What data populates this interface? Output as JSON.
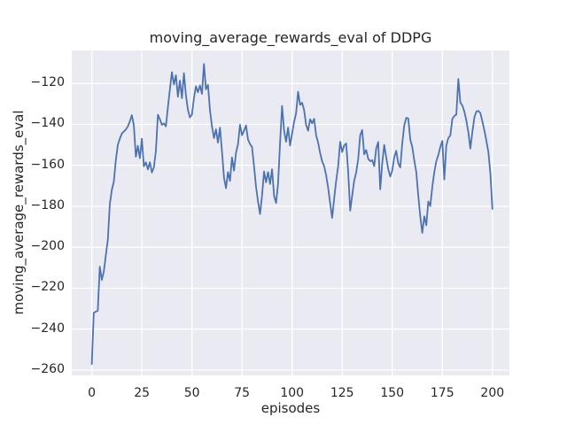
{
  "page": {
    "background": "#ffffff"
  },
  "chart_data": {
    "type": "line",
    "title": "moving_average_rewards_eval of DDPG",
    "xlabel": "episodes",
    "ylabel": "moving_average_rewards_eval",
    "x_ticks": [
      0,
      25,
      50,
      75,
      100,
      125,
      150,
      175,
      200
    ],
    "y_ticks": [
      -120,
      -140,
      -160,
      -180,
      -200,
      -220,
      -240,
      -260
    ],
    "xlim": [
      -10,
      208.5
    ],
    "ylim": [
      -262.6,
      -103.9
    ],
    "grid": true,
    "legend_position": "none",
    "style": {
      "axes_bg": "#eaeaf2",
      "grid_color": "#ffffff",
      "line_color": "#4c72b0",
      "text_color": "#262626"
    },
    "series": [
      {
        "name": "moving_average_rewards_eval",
        "x_start": 0,
        "x_step": 1,
        "values": [
          -257,
          -232,
          -231.5,
          -231,
          -209.5,
          -216,
          -212,
          -204,
          -196.5,
          -179,
          -172,
          -168,
          -157.5,
          -150,
          -147,
          -144.5,
          -143.5,
          -142.5,
          -141,
          -138.5,
          -135.5,
          -140.5,
          -155.8,
          -150.5,
          -156.5,
          -147,
          -160.5,
          -158.5,
          -162,
          -158.5,
          -163.5,
          -161,
          -153,
          -135.3,
          -137.5,
          -140.2,
          -139.5,
          -141,
          -131.6,
          -122.9,
          -114.5,
          -120.5,
          -116,
          -126.5,
          -118.6,
          -127.2,
          -115,
          -125.8,
          -133,
          -136.6,
          -135.2,
          -127.2,
          -121.4,
          -124.3,
          -121,
          -125.1,
          -110.5,
          -122.9,
          -120.7,
          -133,
          -141,
          -146.7,
          -142.4,
          -148.9,
          -141.6,
          -153.2,
          -166,
          -171.2,
          -163.3,
          -167.6,
          -156.1,
          -162.6,
          -153.9,
          -149.6,
          -140.2,
          -145.3,
          -143.1,
          -140.5,
          -147.4,
          -149.6,
          -151,
          -160.4,
          -170.5,
          -177.7,
          -183.8,
          -174.8,
          -163,
          -168.3,
          -163.3,
          -169.1,
          -161.9,
          -174.8,
          -178.4,
          -169,
          -148.9,
          -131,
          -143,
          -148.5,
          -141.6,
          -150.3,
          -144.5,
          -138.8,
          -134.5,
          -124.1,
          -130.5,
          -129.4,
          -133,
          -140.2,
          -143.1,
          -137.5,
          -139.5,
          -137.3,
          -145.3,
          -148.9,
          -154,
          -158,
          -160.4,
          -164.8,
          -171,
          -178.5,
          -185.7,
          -176.3,
          -167.6,
          -160.4,
          -148.5,
          -153.5,
          -150.3,
          -149.3,
          -163,
          -182.1,
          -174.8,
          -167.6,
          -163.5,
          -157,
          -145.3,
          -142.8,
          -154.6,
          -152.5,
          -156.8,
          -158,
          -157.5,
          -160.4,
          -151.8,
          -148.6,
          -171.7,
          -159,
          -150,
          -156.1,
          -161.9,
          -165.5,
          -162.5,
          -156.1,
          -152.9,
          -159,
          -161,
          -149.3,
          -140.5,
          -136.8,
          -137.1,
          -147.4,
          -151,
          -157.5,
          -163.3,
          -174.8,
          -185,
          -193,
          -184.9,
          -189.3,
          -177.7,
          -179.9,
          -170.5,
          -163.3,
          -158,
          -155,
          -151,
          -148.1,
          -166.9,
          -150.3,
          -146.7,
          -145.4,
          -137.3,
          -135.9,
          -135.2,
          -117.8,
          -129.4,
          -130.7,
          -133.7,
          -138.1,
          -143.8,
          -151.8,
          -143.8,
          -136.6,
          -133.7,
          -133.4,
          -134.5,
          -138.5,
          -143,
          -148,
          -153.5,
          -164,
          -181.3
        ]
      }
    ]
  }
}
